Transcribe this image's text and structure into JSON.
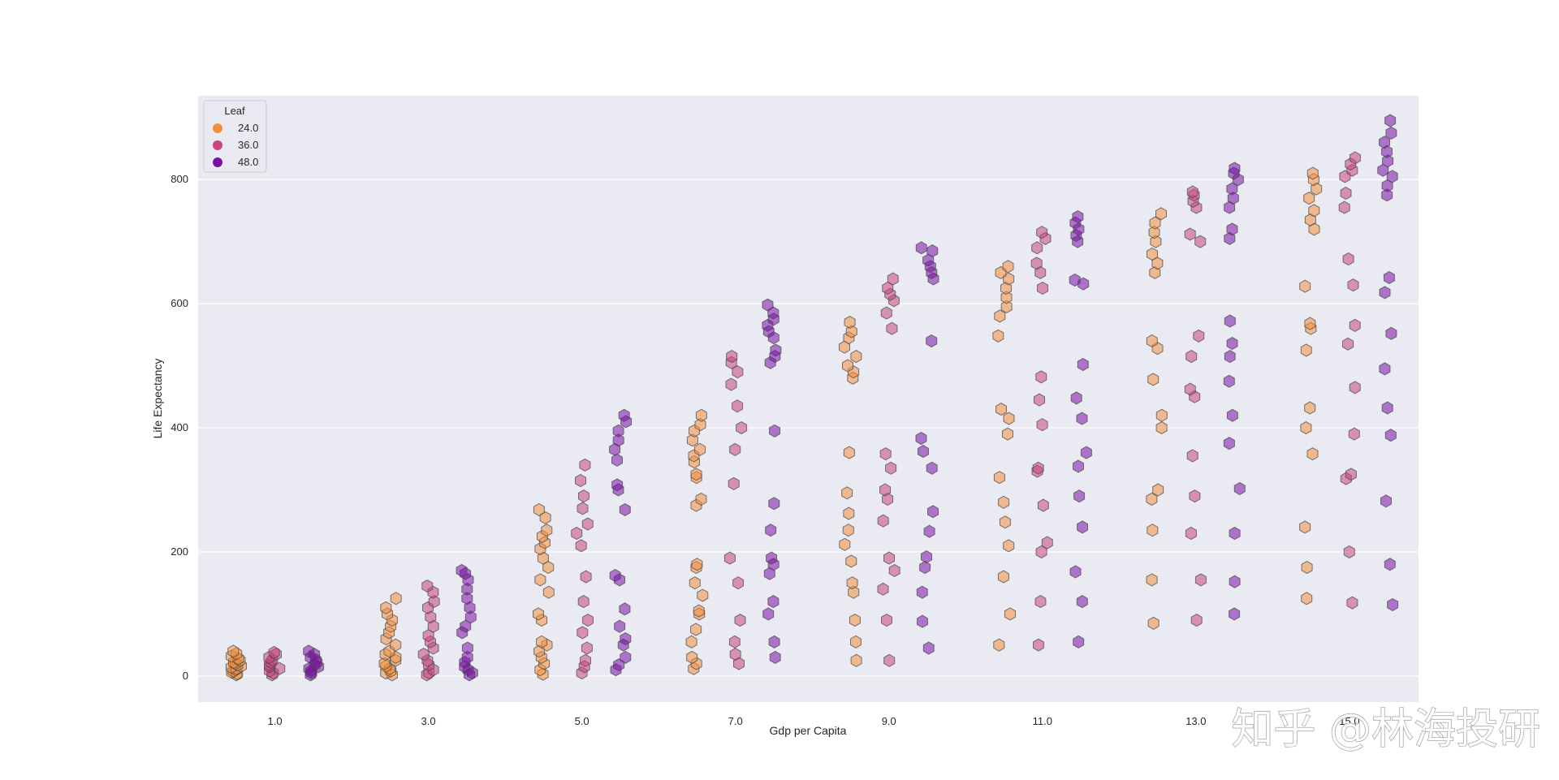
{
  "chart_data": {
    "type": "scatter",
    "marker": "hexagon",
    "xlabel": "Gdp per Capita",
    "ylabel": "Life Expectancy",
    "xlim": [
      0,
      15.9
    ],
    "ylim": [
      -42,
      935
    ],
    "xticks": [
      1.0,
      3.0,
      5.0,
      7.0,
      9.0,
      11.0,
      13.0,
      15.0
    ],
    "xtick_labels": [
      "1.0",
      "3.0",
      "5.0",
      "7.0",
      "9.0",
      "11.0",
      "13.0",
      "15.0"
    ],
    "yticks": [
      0,
      200,
      400,
      600,
      800
    ],
    "ytick_labels": [
      "0",
      "200",
      "400",
      "600",
      "800"
    ],
    "grid": true,
    "background": "#eaeaf2",
    "legend": {
      "title": "Leaf",
      "placement": "top-left"
    },
    "series": [
      {
        "name": "24.0",
        "color": "#f28e3c",
        "offset": -0.5,
        "groups": [
          {
            "x": 1,
            "values": [
              2,
              4,
              6,
              8,
              10,
              12,
              14,
              16,
              18,
              20,
              22,
              25,
              28,
              32,
              36,
              40
            ]
          },
          {
            "x": 3,
            "values": [
              2,
              5,
              8,
              12,
              16,
              20,
              25,
              30,
              35,
              40,
              50,
              60,
              70,
              80,
              90,
              100,
              110,
              125
            ]
          },
          {
            "x": 5,
            "values": [
              3,
              10,
              20,
              30,
              40,
              50,
              55,
              90,
              100,
              135,
              155,
              175,
              190,
              205,
              215,
              225,
              235,
              255,
              268
            ]
          },
          {
            "x": 7,
            "values": [
              12,
              20,
              30,
              55,
              75,
              100,
              105,
              130,
              150,
              175,
              180,
              275,
              285,
              320,
              325,
              345,
              355,
              365,
              380,
              395,
              405,
              420
            ]
          },
          {
            "x": 9,
            "values": [
              25,
              55,
              90,
              135,
              150,
              185,
              212,
              235,
              262,
              295,
              360,
              480,
              490,
              500,
              515,
              530,
              545,
              555,
              570
            ]
          },
          {
            "x": 11,
            "values": [
              50,
              100,
              160,
              210,
              248,
              280,
              320,
              390,
              415,
              430,
              548,
              580,
              595,
              610,
              625,
              640,
              650,
              660
            ]
          },
          {
            "x": 13,
            "values": [
              85,
              155,
              235,
              285,
              300,
              400,
              420,
              478,
              528,
              540,
              650,
              665,
              680,
              700,
              715,
              730,
              745
            ]
          },
          {
            "x": 15,
            "values": [
              125,
              175,
              240,
              358,
              400,
              432,
              525,
              560,
              568,
              628,
              720,
              735,
              750,
              770,
              785,
              800,
              810
            ]
          }
        ]
      },
      {
        "name": "36.0",
        "color": "#c9457d",
        "offset": 0.0,
        "groups": [
          {
            "x": 1,
            "values": [
              2,
              5,
              8,
              12,
              15,
              18,
              22,
              26,
              30,
              35,
              38
            ]
          },
          {
            "x": 3,
            "values": [
              2,
              5,
              10,
              18,
              25,
              35,
              45,
              55,
              65,
              80,
              95,
              110,
              120,
              135,
              145
            ]
          },
          {
            "x": 5,
            "values": [
              5,
              15,
              25,
              45,
              70,
              90,
              120,
              160,
              210,
              230,
              245,
              270,
              290,
              315,
              340
            ]
          },
          {
            "x": 7,
            "values": [
              20,
              35,
              55,
              90,
              150,
              190,
              310,
              365,
              400,
              435,
              470,
              490,
              505,
              515
            ]
          },
          {
            "x": 9,
            "values": [
              25,
              90,
              140,
              170,
              190,
              250,
              285,
              300,
              335,
              358,
              560,
              585,
              605,
              615,
              625,
              640
            ]
          },
          {
            "x": 11,
            "values": [
              50,
              120,
              200,
              215,
              275,
              330,
              335,
              405,
              445,
              482,
              625,
              650,
              665,
              690,
              705,
              715
            ]
          },
          {
            "x": 13,
            "values": [
              90,
              155,
              230,
              290,
              355,
              450,
              462,
              515,
              548,
              700,
              712,
              755,
              765,
              775,
              780
            ]
          },
          {
            "x": 15,
            "values": [
              118,
              200,
              318,
              325,
              390,
              465,
              535,
              565,
              630,
              672,
              755,
              778,
              805,
              815,
              825,
              835
            ]
          }
        ]
      },
      {
        "name": "48.0",
        "color": "#7a0ea8",
        "offset": 0.5,
        "groups": [
          {
            "x": 1,
            "values": [
              2,
              5,
              8,
              12,
              15,
              18,
              22,
              26,
              30,
              35,
              40
            ]
          },
          {
            "x": 3,
            "values": [
              2,
              5,
              10,
              15,
              22,
              30,
              45,
              70,
              80,
              95,
              110,
              125,
              140,
              155,
              165,
              170
            ]
          },
          {
            "x": 5,
            "values": [
              10,
              18,
              30,
              50,
              60,
              80,
              108,
              155,
              162,
              268,
              300,
              308,
              348,
              365,
              380,
              395,
              410,
              420
            ]
          },
          {
            "x": 7,
            "values": [
              30,
              55,
              100,
              120,
              165,
              180,
              190,
              235,
              278,
              395,
              505,
              515,
              525,
              545,
              555,
              565,
              575,
              585,
              598
            ]
          },
          {
            "x": 9,
            "values": [
              45,
              88,
              135,
              175,
              192,
              233,
              265,
              335,
              362,
              383,
              540,
              640,
              650,
              660,
              670,
              685,
              690
            ]
          },
          {
            "x": 11,
            "values": [
              55,
              120,
              168,
              240,
              290,
              338,
              360,
              415,
              448,
              502,
              632,
              638,
              700,
              710,
              720,
              730,
              740
            ]
          },
          {
            "x": 13,
            "values": [
              100,
              152,
              230,
              302,
              375,
              420,
              475,
              515,
              572,
              536,
              705,
              720,
              755,
              770,
              785,
              800,
              810,
              818
            ]
          },
          {
            "x": 15,
            "values": [
              115,
              180,
              282,
              388,
              432,
              495,
              552,
              618,
              642,
              775,
              790,
              805,
              815,
              830,
              845,
              860,
              875,
              895
            ]
          }
        ]
      }
    ]
  },
  "watermark": "知乎 @林海投研"
}
